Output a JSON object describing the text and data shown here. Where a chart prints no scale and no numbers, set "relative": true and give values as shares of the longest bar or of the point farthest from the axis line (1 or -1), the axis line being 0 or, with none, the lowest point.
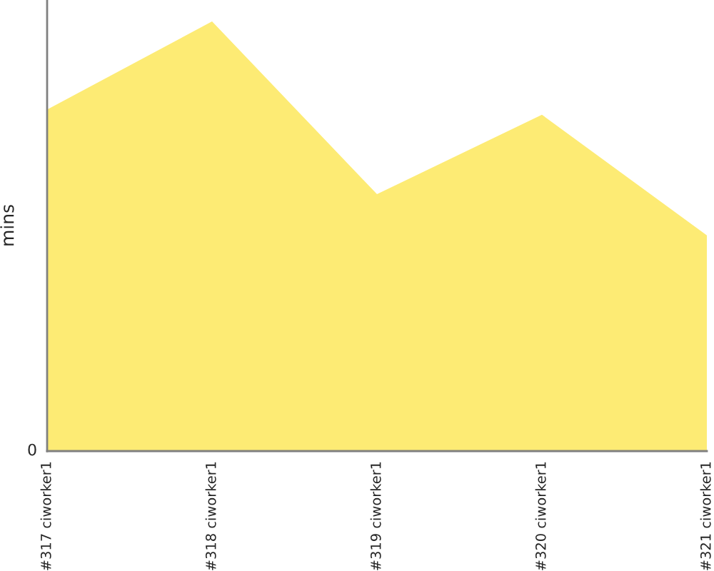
{
  "chart_data": {
    "type": "area",
    "ylabel": "mins",
    "relative": true,
    "categories": [
      "#317 ciworker1",
      "#318 ciworker1",
      "#319 ciworker1",
      "#320 ciworker1",
      "#321 ciworker1"
    ],
    "series": [
      {
        "color": "#fdeb74",
        "values": [
          0.795,
          1,
          0.598,
          0.783,
          0.502
        ]
      }
    ],
    "annotations": [
      "0"
    ],
    "grid": false,
    "legend": false
  }
}
